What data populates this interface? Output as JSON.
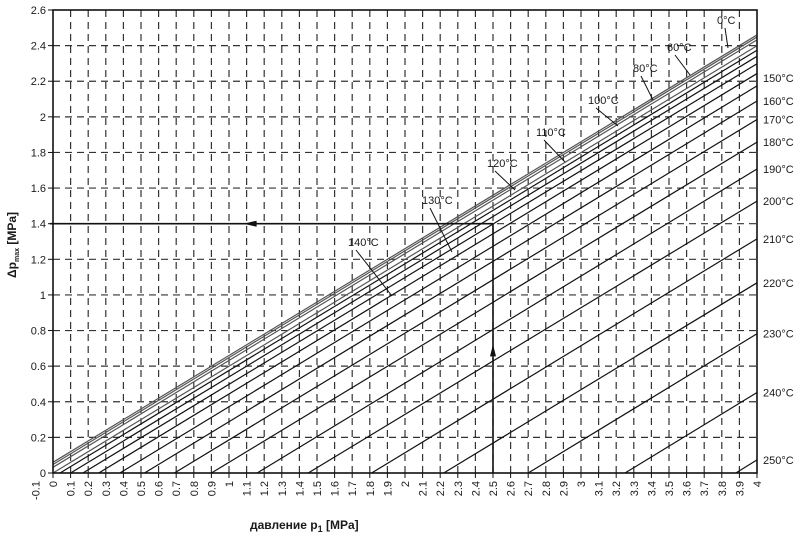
{
  "chart_data": {
    "type": "line",
    "xlabel": "давление p",
    "xlabel_sub": "1",
    "xlabel_unit": "[MPa]",
    "ylabel": "Δp",
    "ylabel_sub": "max",
    "ylabel_unit": "[MPa]",
    "xlim": [
      0,
      4
    ],
    "ylim": [
      0,
      2.6
    ],
    "grid": true,
    "grid_style": "dashed",
    "xticks": [
      "-0.1",
      "0",
      "0.1",
      "0.2",
      "0.3",
      "0.4",
      "0.5",
      "0.6",
      "0.7",
      "0.8",
      "0.9",
      "1",
      "1.1",
      "1.2",
      "1.3",
      "1.4",
      "1.5",
      "1.6",
      "1.7",
      "1.8",
      "1.9",
      "2",
      "2.1",
      "2.2",
      "2.3",
      "2.4",
      "2.5",
      "2.6",
      "2.7",
      "2.8",
      "2.9",
      "3",
      "3.1",
      "3.2",
      "3.3",
      "3.4",
      "3.5",
      "3.6",
      "3.7",
      "3.8",
      "3.9",
      "4"
    ],
    "yticks": [
      "0",
      "0.2",
      "0.4",
      "0.6",
      "0.8",
      "1",
      "1.2",
      "1.4",
      "1.6",
      "1.8",
      "2",
      "2.2",
      "2.4",
      "2.6"
    ],
    "series": [
      {
        "name": "0°C",
        "x": [
          0,
          4
        ],
        "y": [
          0.06,
          2.46
        ]
      },
      {
        "name": "60°C",
        "x": [
          0,
          4
        ],
        "y": [
          0.048,
          2.448
        ]
      },
      {
        "name": "80°C",
        "x": [
          0,
          4
        ],
        "y": [
          0.032,
          2.432
        ]
      },
      {
        "name": "100°C",
        "x": [
          0,
          4
        ],
        "y": [
          0.0,
          2.399
        ]
      },
      {
        "name": "110°C",
        "x": [
          0.04,
          4
        ],
        "y": [
          0,
          2.374
        ]
      },
      {
        "name": "120°C",
        "x": [
          0.1,
          4
        ],
        "y": [
          0,
          2.34
        ]
      },
      {
        "name": "130°C",
        "x": [
          0.17,
          4
        ],
        "y": [
          0,
          2.298
        ]
      },
      {
        "name": "140°C",
        "x": [
          0.26,
          4
        ],
        "y": [
          0,
          2.243
        ]
      },
      {
        "name": "150°C",
        "x": [
          0.38,
          4
        ],
        "y": [
          0,
          2.174
        ]
      },
      {
        "name": "160°C",
        "x": [
          0.52,
          4
        ],
        "y": [
          0,
          2.089
        ]
      },
      {
        "name": "170°C",
        "x": [
          0.69,
          4
        ],
        "y": [
          0,
          1.985
        ]
      },
      {
        "name": "180°C",
        "x": [
          0.9,
          4
        ],
        "y": [
          0,
          1.858
        ]
      },
      {
        "name": "190°C",
        "x": [
          1.16,
          4
        ],
        "y": [
          0,
          1.707
        ]
      },
      {
        "name": "200°C",
        "x": [
          1.45,
          4
        ],
        "y": [
          0,
          1.527
        ]
      },
      {
        "name": "210°C",
        "x": [
          1.81,
          4
        ],
        "y": [
          0,
          1.315
        ]
      },
      {
        "name": "220°C",
        "x": [
          2.22,
          4
        ],
        "y": [
          0,
          1.068
        ]
      },
      {
        "name": "230°C",
        "x": [
          2.7,
          4
        ],
        "y": [
          0,
          0.782
        ]
      },
      {
        "name": "240°C",
        "x": [
          3.25,
          4
        ],
        "y": [
          0,
          0.452
        ]
      },
      {
        "name": "250°C",
        "x": [
          3.88,
          4
        ],
        "y": [
          0,
          0.074
        ]
      }
    ],
    "example_reading": {
      "p1": 2.5,
      "dp_max": 1.4
    }
  }
}
